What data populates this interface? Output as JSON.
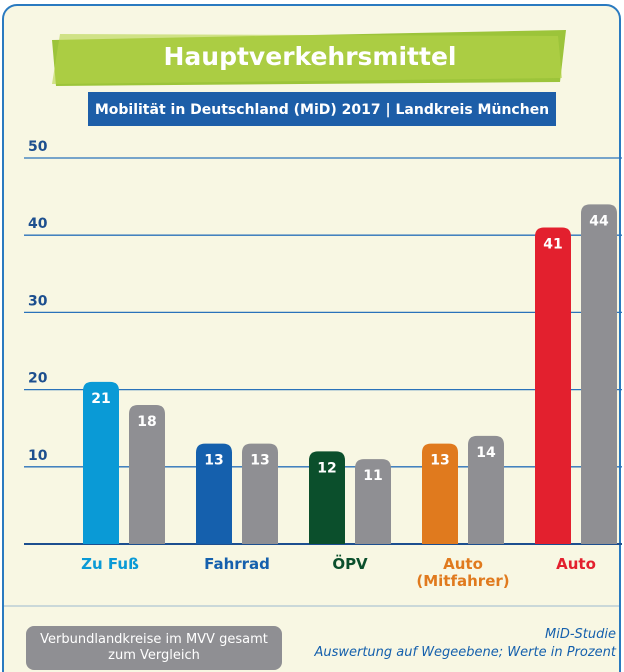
{
  "chart_data": {
    "type": "bar",
    "title": "Hauptverkehrsmittel",
    "subtitle": "Mobilität in Deutschland (MiD) 2017 | Landkreis München",
    "categories": [
      "Zu Fuß",
      "Fahrrad",
      "ÖPV",
      "Auto (Mitfahrer)",
      "Auto"
    ],
    "category_colors": [
      "#0a9ad6",
      "#1560ad",
      "#0b4f2c",
      "#e07a1e",
      "#e3202e"
    ],
    "series": [
      {
        "colors": [
          "#0a9ad6",
          "#1560ad",
          "#0b4f2c",
          "#e07a1e",
          "#e3202e"
        ],
        "values": [
          21,
          13,
          12,
          13,
          41
        ]
      },
      {
        "name": "Verbundlandkreise im MVV gesamt zum Vergleich",
        "color": "#8f8f93",
        "values": [
          18,
          13,
          11,
          14,
          44
        ]
      }
    ],
    "ylim": [
      0,
      52
    ],
    "yticks": [
      10,
      20,
      30,
      40,
      50
    ],
    "grid": true,
    "source": "MiD-Studie",
    "note": "Auswertung auf Wegeebene; Werte in Prozent"
  }
}
